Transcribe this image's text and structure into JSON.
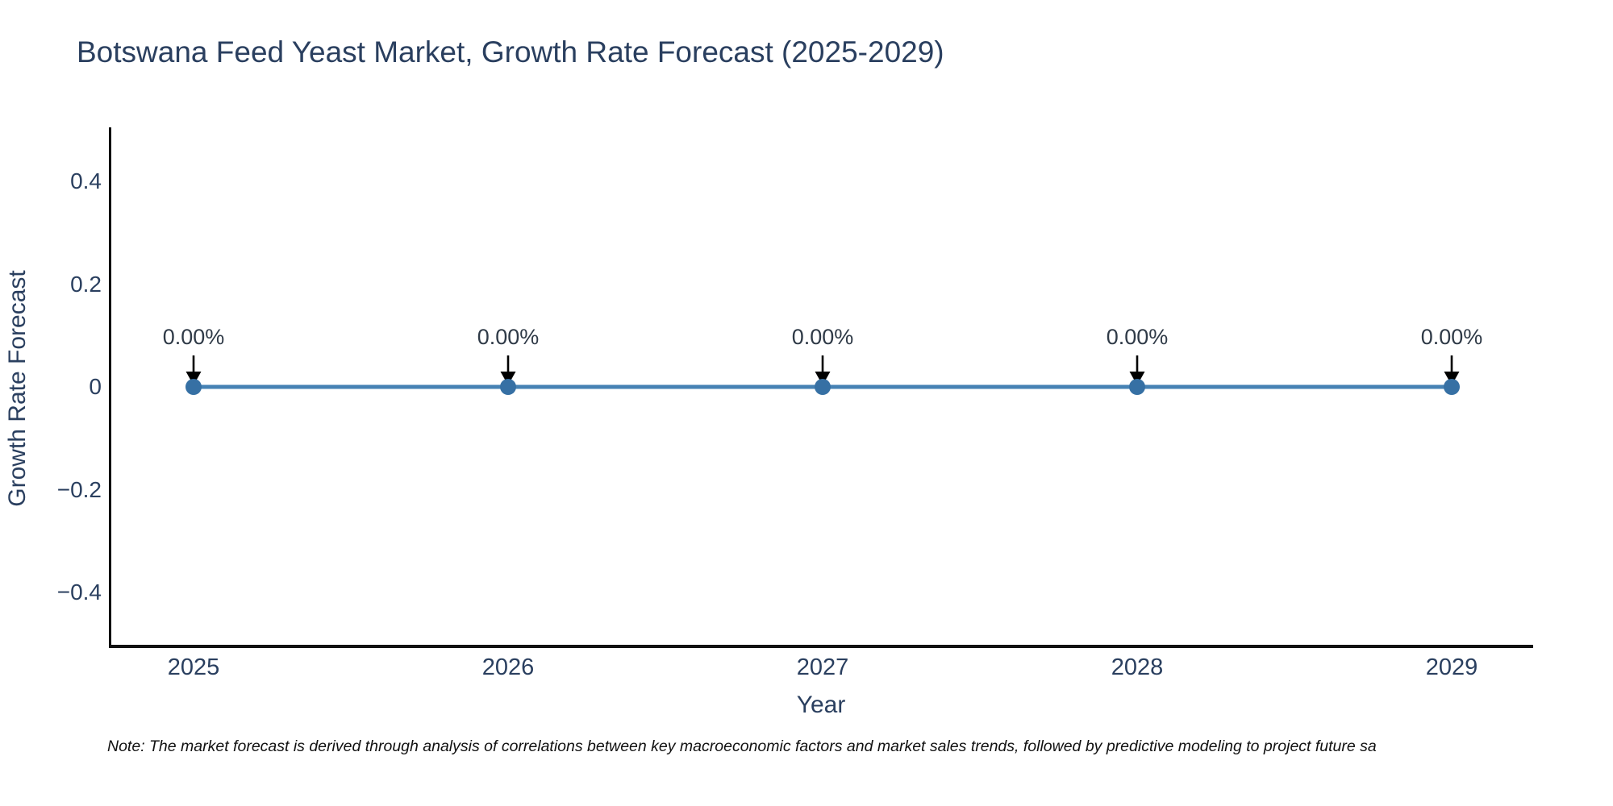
{
  "title": "Botswana Feed Yeast Market, Growth Rate Forecast (2025-2029)",
  "note": "Note: The market forecast is derived through analysis of correlations between key macroeconomic factors and market sales trends, followed by predictive modeling to project future sa",
  "colors": {
    "title_text": "#2a3f5f",
    "tick_text": "#2a3f5f",
    "annotation_text": "#2f3a47",
    "line": "#4682b4",
    "marker": "#3670a4",
    "arrow": "#000000",
    "axis": "#111111",
    "background": "#ffffff"
  },
  "chart_data": {
    "type": "line",
    "title": "Botswana Feed Yeast Market, Growth Rate Forecast (2025-2029)",
    "xlabel": "Year",
    "ylabel": "Growth Rate Forecast",
    "categories": [
      "2025",
      "2026",
      "2027",
      "2028",
      "2029"
    ],
    "series": [
      {
        "name": "Growth Rate Forecast",
        "values": [
          0,
          0,
          0,
          0,
          0
        ],
        "point_labels": [
          "0.00%",
          "0.00%",
          "0.00%",
          "0.00%",
          "0.00%"
        ]
      }
    ],
    "y_tick_values": [
      0.4,
      0.2,
      0,
      -0.2,
      -0.4
    ],
    "y_tick_labels": [
      "0.4",
      "0.2",
      "0",
      "−0.2",
      "−0.4"
    ],
    "ylim": [
      -0.5,
      0.5
    ],
    "grid": false,
    "legend_position": "none",
    "annotations_have_arrows": true
  }
}
